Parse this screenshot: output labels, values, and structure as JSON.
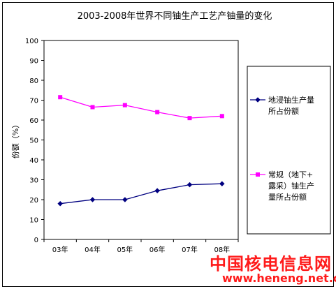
{
  "chart_data": {
    "type": "line",
    "title": "2003-2008年世界不同铀生产工艺产铀量的变化",
    "xlabel": "",
    "ylabel": "份额（%）",
    "categories": [
      "03年",
      "04年",
      "05年",
      "06年",
      "07年",
      "08年"
    ],
    "ylim": [
      0,
      100
    ],
    "yticks": [
      "0",
      "10",
      "20",
      "30",
      "40",
      "50",
      "60",
      "70",
      "80",
      "90",
      "100"
    ],
    "grid": false,
    "legend_position": "right",
    "series": [
      {
        "name": "地浸铀生产量所占份额",
        "legend_lines": [
          "地浸铀生产量",
          "所占份额"
        ],
        "color": "#000080",
        "marker": "diamond",
        "values": [
          18,
          20,
          20,
          24.5,
          27.5,
          28
        ]
      },
      {
        "name": "常规（地下+露采）铀生产量所占份额",
        "legend_lines": [
          "常规（地下+",
          "露采）铀生产",
          "量所占份额"
        ],
        "color": "#ff00ff",
        "marker": "square",
        "values": [
          71.5,
          66.5,
          67.5,
          64,
          61,
          62
        ]
      }
    ]
  },
  "watermark": {
    "brand": "中国核电信息网",
    "url": "www.heneng.net.cn",
    "color": "#ff1a1a"
  }
}
